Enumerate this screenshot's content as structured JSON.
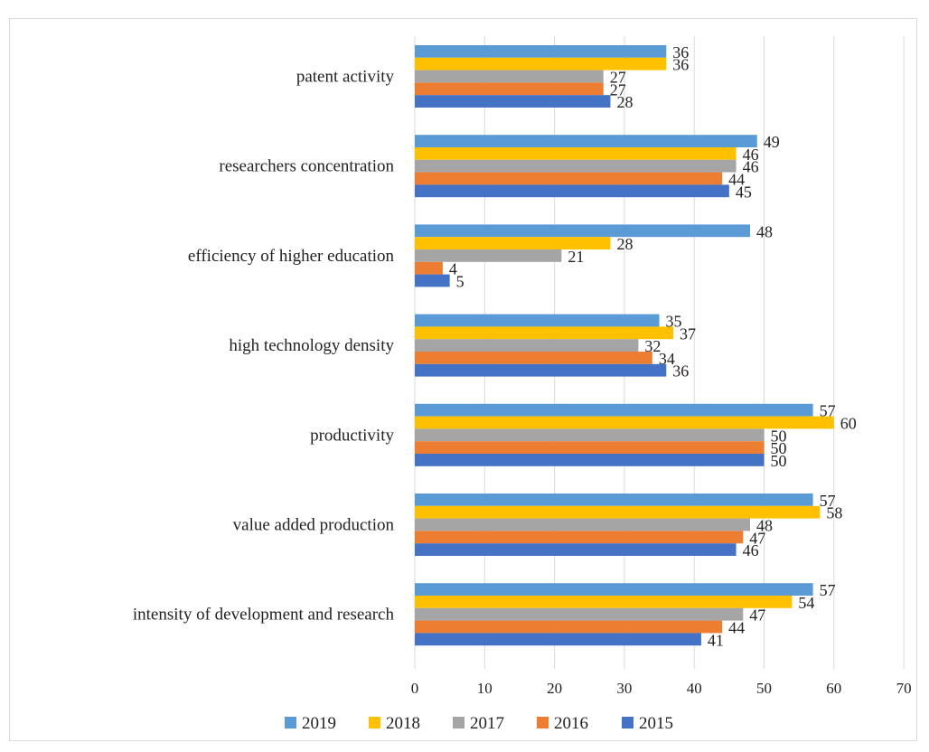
{
  "chart_data": {
    "type": "bar",
    "orientation": "horizontal",
    "categories": [
      "patent activity",
      "researchers concentration",
      "efficiency of higher education",
      "high technology density",
      "productivity",
      "value added production",
      "intensity of development and research"
    ],
    "series": [
      {
        "name": "2019",
        "color": "#5b9bd5",
        "values": [
          36,
          49,
          48,
          35,
          57,
          57,
          57
        ]
      },
      {
        "name": "2018",
        "color": "#ffc000",
        "values": [
          36,
          46,
          28,
          37,
          60,
          58,
          54
        ]
      },
      {
        "name": "2017",
        "color": "#a5a5a5",
        "values": [
          27,
          46,
          21,
          32,
          50,
          48,
          47
        ]
      },
      {
        "name": "2016",
        "color": "#ed7d31",
        "values": [
          27,
          44,
          4,
          34,
          50,
          47,
          44
        ]
      },
      {
        "name": "2015",
        "color": "#4472c4",
        "values": [
          28,
          45,
          5,
          36,
          50,
          46,
          41
        ]
      }
    ],
    "xlim": [
      0,
      70
    ],
    "xticks": [
      0,
      10,
      20,
      30,
      40,
      50,
      60,
      70
    ],
    "grid": true,
    "legend": "bottom",
    "data_labels": true
  }
}
